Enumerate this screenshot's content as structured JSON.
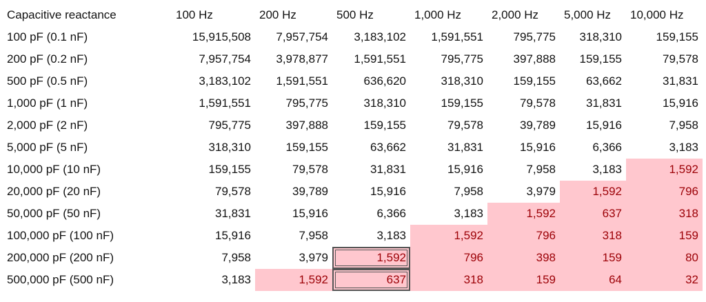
{
  "table": {
    "header": [
      "Capacitive reactance",
      "100 Hz",
      "200 Hz",
      "500 Hz",
      "1,000 Hz",
      "2,000 Hz",
      "5,000 Hz",
      "10,000 Hz"
    ],
    "rows": [
      [
        "100 pF (0.1 nF)",
        "15,915,508",
        "7,957,754",
        "3,183,102",
        "1,591,551",
        "795,775",
        "318,310",
        "159,155"
      ],
      [
        "200 pF (0.2 nF)",
        "7,957,754",
        "3,978,877",
        "1,591,551",
        "795,775",
        "397,888",
        "159,155",
        "79,578"
      ],
      [
        "500 pF (0.5 nF)",
        "3,183,102",
        "1,591,551",
        "636,620",
        "318,310",
        "159,155",
        "63,662",
        "31,831"
      ],
      [
        "1,000 pF (1 nF)",
        "1,591,551",
        "795,775",
        "318,310",
        "159,155",
        "79,578",
        "31,831",
        "15,916"
      ],
      [
        "2,000 pF (2 nF)",
        "795,775",
        "397,888",
        "159,155",
        "79,578",
        "39,789",
        "15,916",
        "7,958"
      ],
      [
        "5,000 pF (5 nF)",
        "318,310",
        "159,155",
        "63,662",
        "31,831",
        "15,916",
        "6,366",
        "3,183"
      ],
      [
        "10,000 pF (10 nF)",
        "159,155",
        "79,578",
        "31,831",
        "15,916",
        "7,958",
        "3,183",
        "1,592"
      ],
      [
        "20,000 pF (20 nF)",
        "79,578",
        "39,789",
        "15,916",
        "7,958",
        "3,979",
        "1,592",
        "796"
      ],
      [
        "50,000 pF (50 nF)",
        "31,831",
        "15,916",
        "6,366",
        "3,183",
        "1,592",
        "637",
        "318"
      ],
      [
        "100,000 pF (100 nF)",
        "15,916",
        "7,958",
        "3,183",
        "1,592",
        "796",
        "318",
        "159"
      ],
      [
        "200,000 pF (200 nF)",
        "7,958",
        "3,979",
        "1,592",
        "796",
        "398",
        "159",
        "80"
      ],
      [
        "500,000 pF (500 nF)",
        "3,183",
        "1,592",
        "637",
        "318",
        "159",
        "64",
        "32"
      ]
    ]
  }
}
